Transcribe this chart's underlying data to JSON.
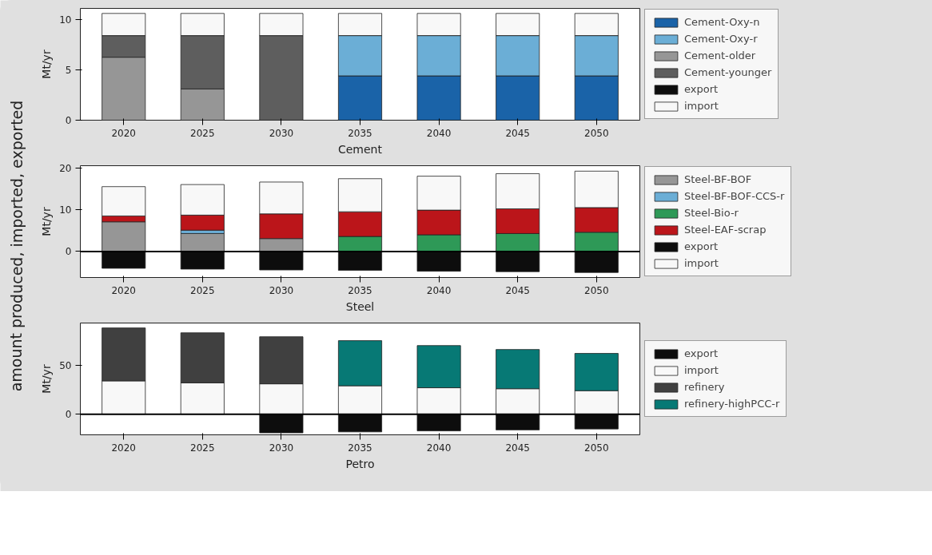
{
  "chart_data": [
    {
      "type": "bar",
      "stacked": true,
      "xlabel": "Cement",
      "ylabel": "Mt/yr",
      "annotations": [
        "amount produced, imported, exported"
      ],
      "categories": [
        "2020",
        "2025",
        "2030",
        "2035",
        "2040",
        "2045",
        "2050"
      ],
      "ylim": [
        0,
        11.1
      ],
      "yticks": [
        0,
        5,
        10
      ],
      "legend": "right",
      "series": [
        {
          "name": "Cement-Oxy-n",
          "color": "#1a63a8",
          "values": [
            null,
            null,
            null,
            4.4,
            4.4,
            4.4,
            4.4
          ]
        },
        {
          "name": "Cement-Oxy-r",
          "color": "#6baed6",
          "values": [
            null,
            null,
            null,
            4.0,
            4.0,
            4.0,
            4.0
          ]
        },
        {
          "name": "Cement-older",
          "color": "#969696",
          "values": [
            6.25,
            3.1,
            null,
            null,
            null,
            null,
            null
          ]
        },
        {
          "name": "Cement-younger",
          "color": "#5e5e5e",
          "values": [
            2.15,
            5.3,
            8.4,
            null,
            null,
            null,
            null
          ]
        },
        {
          "name": "export",
          "color": "#0d0d0d",
          "values": [
            0,
            0,
            0,
            0,
            0,
            0,
            0
          ]
        },
        {
          "name": "import",
          "color": "#f8f8f8",
          "values": [
            2.2,
            2.2,
            2.2,
            2.2,
            2.2,
            2.2,
            2.2
          ]
        }
      ]
    },
    {
      "type": "bar",
      "stacked": true,
      "xlabel": "Steel",
      "ylabel": "Mt/yr",
      "categories": [
        "2020",
        "2025",
        "2030",
        "2035",
        "2040",
        "2045",
        "2050"
      ],
      "ylim": [
        -6.2,
        20.5
      ],
      "yticks": [
        0,
        10,
        20
      ],
      "legend": "right",
      "ref_lines": [
        {
          "axis": "y",
          "value": 0,
          "color": "#000000"
        }
      ],
      "series": [
        {
          "name": "Steel-BF-BOF",
          "color": "#969696",
          "values": [
            7.1,
            4.3,
            3.1,
            null,
            null,
            null,
            null
          ]
        },
        {
          "name": "Steel-BF-BOF-CCS-r",
          "color": "#6baed6",
          "values": [
            null,
            0.8,
            null,
            null,
            null,
            null,
            null
          ]
        },
        {
          "name": "Steel-Bio-r",
          "color": "#2e9957",
          "values": [
            null,
            null,
            null,
            3.6,
            4.0,
            4.3,
            4.6
          ]
        },
        {
          "name": "Steel-EAF-scrap",
          "color": "#bb151a",
          "values": [
            1.4,
            3.6,
            5.9,
            5.9,
            5.9,
            5.9,
            5.9
          ]
        },
        {
          "name": "export",
          "color": "#0d0d0d",
          "values": [
            -4.0,
            -4.2,
            -4.4,
            -4.5,
            -4.7,
            -4.8,
            -5.0
          ]
        },
        {
          "name": "import",
          "color": "#f8f8f8",
          "values": [
            7.0,
            7.3,
            7.6,
            7.9,
            8.1,
            8.4,
            8.7
          ]
        }
      ]
    },
    {
      "type": "bar",
      "stacked": true,
      "xlabel": "Petro",
      "ylabel": "Mt/yr",
      "categories": [
        "2020",
        "2025",
        "2030",
        "2035",
        "2040",
        "2045",
        "2050"
      ],
      "ylim": [
        -21,
        93
      ],
      "yticks": [
        0,
        50
      ],
      "legend": "right",
      "ref_lines": [
        {
          "axis": "y",
          "value": 0,
          "color": "#000000"
        }
      ],
      "series": [
        {
          "name": "export",
          "color": "#0d0d0d",
          "values": [
            null,
            null,
            -19,
            -18,
            -17,
            -16,
            -15
          ]
        },
        {
          "name": "import",
          "color": "#f8f8f8",
          "values": [
            34,
            32,
            31,
            29,
            27,
            26,
            24
          ]
        },
        {
          "name": "refinery",
          "color": "#404040",
          "values": [
            54,
            51,
            48,
            null,
            null,
            null,
            null
          ]
        },
        {
          "name": "refinery-highPCC-r",
          "color": "#077975",
          "values": [
            null,
            null,
            null,
            46,
            43,
            40,
            38
          ]
        }
      ]
    }
  ]
}
